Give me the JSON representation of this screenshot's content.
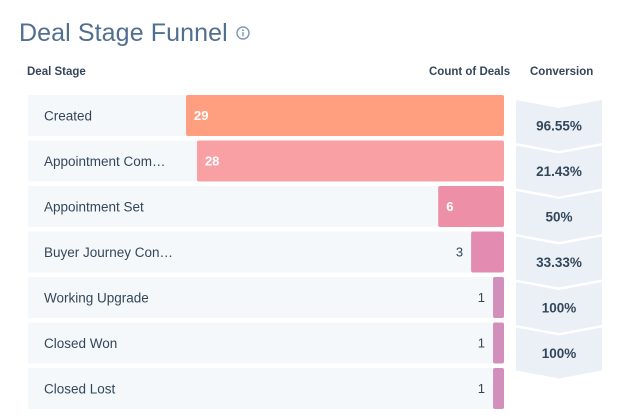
{
  "header": {
    "title": "Deal Stage Funnel",
    "info_icon": "info-circle-icon"
  },
  "columns": {
    "stage": "Deal Stage",
    "count": "Count of Deals",
    "conversion": "Conversion"
  },
  "colors": {
    "title": "#516f90",
    "row_bg": "#f5f8fa",
    "conversion_bg": "#eaf0f6",
    "bar_gradient": [
      "#ff9f80",
      "#f9a0a5",
      "#ee8fa8",
      "#e38bb1",
      "#d38fbb"
    ]
  },
  "chart_data": {
    "type": "bar",
    "orientation": "horizontal-funnel",
    "title": "Deal Stage Funnel",
    "xlabel": "Count of Deals",
    "ylabel": "Deal Stage",
    "categories": [
      "Created",
      "Appointment Com…",
      "Appointment Set",
      "Buyer Journey Con…",
      "Working Upgrade",
      "Closed Won",
      "Closed Lost"
    ],
    "values": [
      29,
      28,
      6,
      3,
      1,
      1,
      1
    ],
    "conversions": [
      "96.55%",
      "21.43%",
      "50%",
      "33.33%",
      "100%",
      "100%"
    ],
    "xlim": [
      0,
      29
    ],
    "grid": false,
    "legend": "none"
  }
}
